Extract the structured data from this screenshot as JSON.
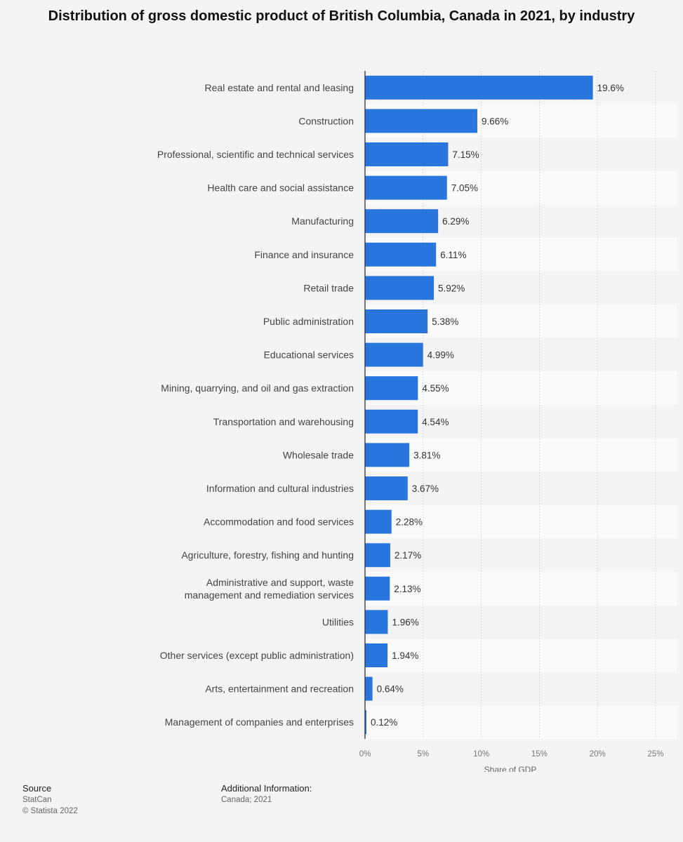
{
  "chart_data": {
    "type": "bar",
    "orientation": "horizontal",
    "title": "Distribution of gross domestic product of British Columbia, Canada in 2021, by industry",
    "categories": [
      "Real estate and rental and leasing",
      "Construction",
      "Professional, scientific and technical services",
      "Health care and social assistance",
      "Manufacturing",
      "Finance and insurance",
      "Retail trade",
      "Public administration",
      "Educational services",
      "Mining, quarrying, and oil and gas extraction",
      "Transportation and warehousing",
      "Wholesale trade",
      "Information and cultural industries",
      "Accommodation and food services",
      "Agriculture, forestry, fishing and hunting",
      "Administrative and support, waste management and remediation services",
      "Utilities",
      "Other services (except public administration)",
      "Arts, entertainment and recreation",
      "Management of companies and enterprises"
    ],
    "values": [
      19.6,
      9.66,
      7.15,
      7.05,
      6.29,
      6.11,
      5.92,
      5.38,
      4.99,
      4.55,
      4.54,
      3.81,
      3.67,
      2.28,
      2.17,
      2.13,
      1.96,
      1.94,
      0.64,
      0.12
    ],
    "value_labels": [
      "19.6%",
      "9.66%",
      "7.15%",
      "7.05%",
      "6.29%",
      "6.11%",
      "5.92%",
      "5.38%",
      "4.99%",
      "4.55%",
      "4.54%",
      "3.81%",
      "3.67%",
      "2.28%",
      "2.17%",
      "2.13%",
      "1.96%",
      "1.94%",
      "0.64%",
      "0.12%"
    ],
    "xlabel": "Share of GDP",
    "ylabel": "",
    "xlim": [
      0,
      25
    ],
    "xticks": [
      0,
      5,
      10,
      15,
      20,
      25
    ],
    "xtick_labels": [
      "0%",
      "5%",
      "10%",
      "15%",
      "20%",
      "25%"
    ],
    "grid": true,
    "bar_color": "#2876dd",
    "alt_row_color": "#fafafa"
  },
  "footer": {
    "source_heading": "Source",
    "source_name": "StatCan",
    "copyright": "© Statista 2022",
    "additional_heading": "Additional Information:",
    "additional_text": "Canada; 2021"
  }
}
